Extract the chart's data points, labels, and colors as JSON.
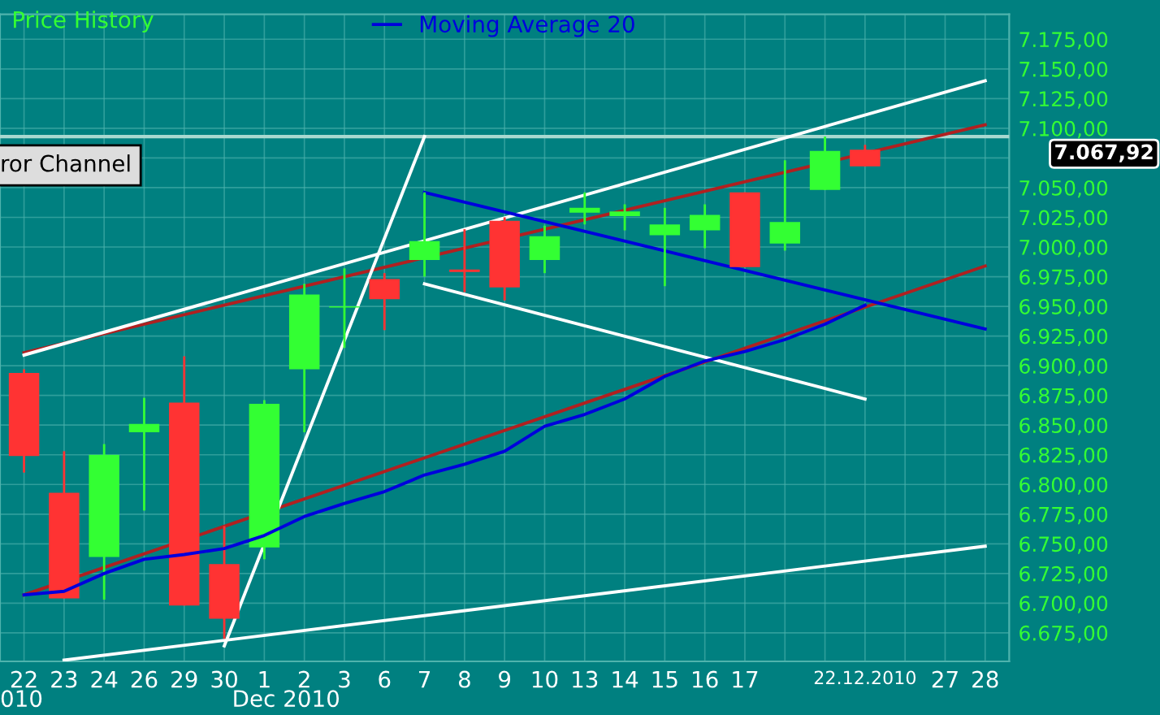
{
  "chart_data": {
    "type": "candlestick",
    "categories": [
      "22",
      "23",
      "24",
      "26",
      "29",
      "30",
      "1",
      "2",
      "3",
      "6",
      "7",
      "8",
      "9",
      "10",
      "13",
      "14",
      "15",
      "16",
      "17",
      null,
      null,
      "22.12.2010",
      null,
      "27",
      "28"
    ],
    "ohlc": [
      [
        6894,
        6897,
        6810,
        6824
      ],
      [
        6793,
        6828,
        6704,
        6704
      ],
      [
        6739,
        6834,
        6703,
        6825
      ],
      [
        6844,
        6873,
        6778,
        6851
      ],
      [
        6869,
        6908,
        6698,
        6698
      ],
      [
        6733,
        6765,
        6670,
        6687
      ],
      [
        6747,
        6871,
        6737,
        6868
      ],
      [
        6897,
        6969,
        6844,
        6960
      ],
      [
        6949,
        6982,
        6915,
        6950
      ],
      [
        6973,
        6978,
        6930,
        6956
      ],
      [
        6989,
        7046,
        6975,
        7005
      ],
      [
        6981,
        7015,
        6962,
        6979
      ],
      [
        7022,
        7025,
        6955,
        6966
      ],
      [
        6989,
        7018,
        6978,
        7009
      ],
      [
        7029,
        7046,
        7019,
        7033
      ],
      [
        7026,
        7036,
        7014,
        7030
      ],
      [
        7010,
        7033,
        6967,
        7019
      ],
      [
        7014,
        7036,
        6999,
        7027
      ],
      [
        7046,
        7046,
        6983,
        6983
      ],
      [
        7003,
        7073,
        6997,
        7021
      ],
      [
        7048,
        7093,
        7048,
        7081
      ],
      [
        7082,
        7086,
        7067.92,
        7067.92
      ],
      null,
      null,
      null
    ],
    "colors": [
      "#ff3333",
      "#ff3333",
      "#33ff33",
      "#33ff33",
      "#ff3333",
      "#ff3333",
      "#33ff33",
      "#33ff33",
      "#33ff33",
      "#ff3333",
      "#33ff33",
      "#ff3333",
      "#ff3333",
      "#33ff33",
      "#33ff33",
      "#33ff33",
      "#33ff33",
      "#33ff33",
      "#ff3333",
      "#33ff33",
      "#33ff33",
      "#ff3333",
      null,
      null,
      null
    ],
    "series": [
      {
        "name": "Moving Average 20",
        "type": "line",
        "color": "#0000dd",
        "values": [
          6707,
          6710,
          6725,
          6737,
          6741,
          6746,
          6757,
          6773,
          6784,
          6794,
          6808,
          6817,
          6828,
          6849,
          6859,
          6872,
          6891,
          6904,
          6912,
          6922,
          6935,
          6951,
          null,
          null,
          null
        ]
      },
      {
        "type": "line",
        "color": "#b02020",
        "x": [
          "22",
          "28"
        ],
        "values": [
          6707,
          6984
        ]
      },
      {
        "type": "line",
        "color": "#b02020",
        "x": [
          "22",
          "28"
        ],
        "values": [
          6911,
          7103
        ]
      },
      {
        "type": "line",
        "color": "#ffffff",
        "x": [
          "22",
          "28"
        ],
        "values": [
          6909,
          7140
        ]
      },
      {
        "type": "line",
        "color": "#ffffff",
        "x": [
          "23",
          "28"
        ],
        "values": [
          6652,
          6748
        ]
      },
      {
        "type": "line",
        "color": "#0000dd",
        "x": [
          "7",
          "28"
        ],
        "values": [
          7046,
          6931
        ]
      },
      {
        "type": "line",
        "color": "#ffffff",
        "x": [
          "30",
          "7"
        ],
        "values": [
          6664,
          7093
        ]
      },
      {
        "type": "line",
        "color": "#ffffff",
        "x": [
          "7",
          "22.12.2010"
        ],
        "values": [
          6969,
          6872
        ]
      }
    ],
    "ylim": [
      6651,
      7196
    ],
    "yticks": [
      {
        "value": 6675,
        "label": "6.675,00"
      },
      {
        "value": 6700,
        "label": "6.700,00"
      },
      {
        "value": 6725,
        "label": "6.725,00"
      },
      {
        "value": 6750,
        "label": "6.750,00"
      },
      {
        "value": 6775,
        "label": "6.775,00"
      },
      {
        "value": 6800,
        "label": "6.800,00"
      },
      {
        "value": 6825,
        "label": "6.825,00"
      },
      {
        "value": 6850,
        "label": "6.850,00"
      },
      {
        "value": 6875,
        "label": "6.875,00"
      },
      {
        "value": 6900,
        "label": "6.900,00"
      },
      {
        "value": 6925,
        "label": "6.925,00"
      },
      {
        "value": 6950,
        "label": "6.950,00"
      },
      {
        "value": 6975,
        "label": "6.975,00"
      },
      {
        "value": 7000,
        "label": "7.000,00"
      },
      {
        "value": 7025,
        "label": "7.025,00"
      },
      {
        "value": 7050,
        "label": "7.050,00"
      },
      {
        "value": 7075,
        "label": null
      },
      {
        "value": 7100,
        "label": "7.100,00"
      },
      {
        "value": 7125,
        "label": "7.125,00"
      },
      {
        "value": 7150,
        "label": "7.150,00"
      },
      {
        "value": 7175,
        "label": "7.175,00"
      }
    ],
    "ref_lines": [
      {
        "axis": "y",
        "value": 7093,
        "color": "#a8d8d0"
      }
    ],
    "grid": true,
    "legend": "top",
    "annotations": [
      "Price History",
      "7.067,92",
      "ror Channel",
      "Dec 2010",
      "010"
    ]
  }
}
